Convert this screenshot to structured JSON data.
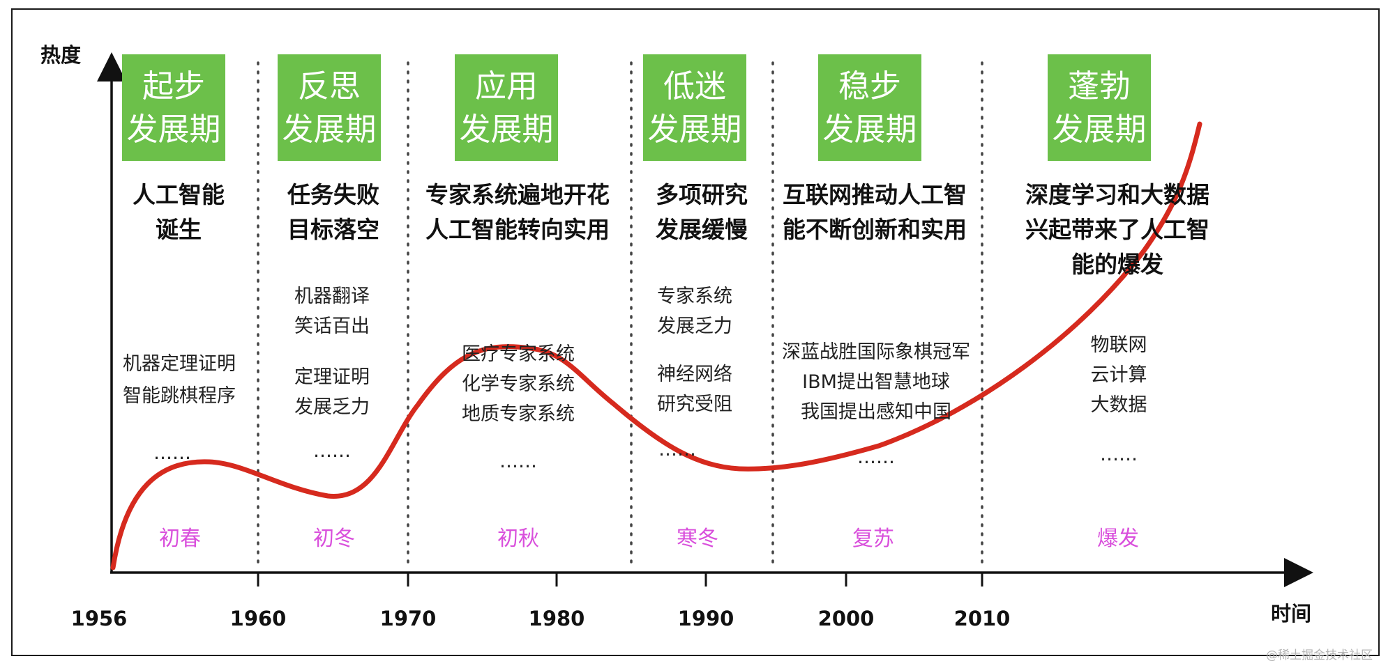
{
  "axes": {
    "y_label": "热度",
    "x_label": "时间"
  },
  "years": [
    "1956",
    "1960",
    "1970",
    "1980",
    "1990",
    "2000",
    "2010"
  ],
  "phases": [
    {
      "title_line1": "起步",
      "title_line2": "发展期",
      "headline": [
        "人工智能",
        "诞生"
      ],
      "events": [
        "机器定理证明",
        "智能跳棋程序",
        "……"
      ],
      "season": "初春"
    },
    {
      "title_line1": "反思",
      "title_line2": "发展期",
      "headline": [
        "任务失败",
        "目标落空"
      ],
      "events": [
        "机器翻译",
        "笑话百出",
        "定理证明",
        "发展乏力",
        "……"
      ],
      "season": "初冬"
    },
    {
      "title_line1": "应用",
      "title_line2": "发展期",
      "headline": [
        "专家系统遍地开花",
        "人工智能转向实用"
      ],
      "events": [
        "医疗专家系统",
        "化学专家系统",
        "地质专家系统",
        "……"
      ],
      "season": "初秋"
    },
    {
      "title_line1": "低迷",
      "title_line2": "发展期",
      "headline": [
        "多项研究",
        "发展缓慢"
      ],
      "events": [
        "专家系统",
        "发展乏力",
        "神经网络",
        "研究受阻",
        "……"
      ],
      "season": "寒冬"
    },
    {
      "title_line1": "稳步",
      "title_line2": "发展期",
      "headline": [
        "互联网推动人工智",
        "能不断创新和实用"
      ],
      "events": [
        "深蓝战胜国际象棋冠军",
        "IBM提出智慧地球",
        "我国提出感知中国",
        "……"
      ],
      "season": "复苏"
    },
    {
      "title_line1": "蓬勃",
      "title_line2": "发展期",
      "headline": [
        "深度学习和大数据",
        "兴起带来了人工智",
        "能的爆发"
      ],
      "events": [
        "物联网",
        "云计算",
        "大数据",
        "……"
      ],
      "season": "爆发"
    }
  ],
  "watermark": "@稀土掘金技术社区",
  "colors": {
    "box_green": "#6cc04a",
    "curve_red": "#d62a1e",
    "season_magenta": "#d94fdc",
    "axis_black": "#111111"
  }
}
